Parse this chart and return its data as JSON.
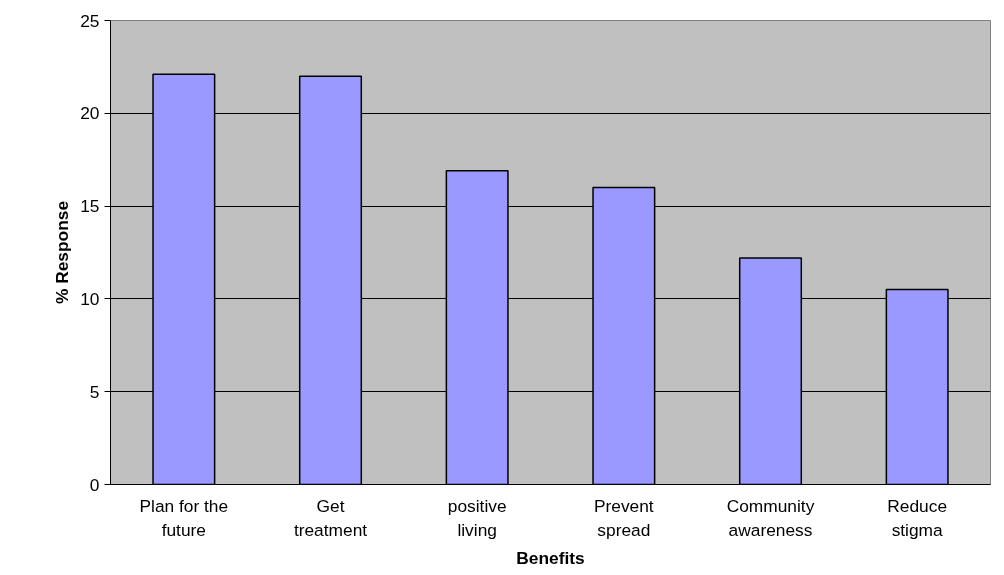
{
  "chart_data": {
    "type": "bar",
    "xlabel": "Benefits",
    "ylabel": "% Response",
    "categories": [
      "Plan for the future",
      "Get treatment",
      "positive living",
      "Prevent spread",
      "Community awareness",
      "Reduce stigma"
    ],
    "values": [
      22.1,
      22.0,
      16.9,
      16.0,
      12.2,
      10.5
    ],
    "color": "#9999ff",
    "ylim": [
      0,
      25
    ],
    "yticks": [
      0,
      5,
      10,
      15,
      20,
      25
    ],
    "grid": "y"
  }
}
